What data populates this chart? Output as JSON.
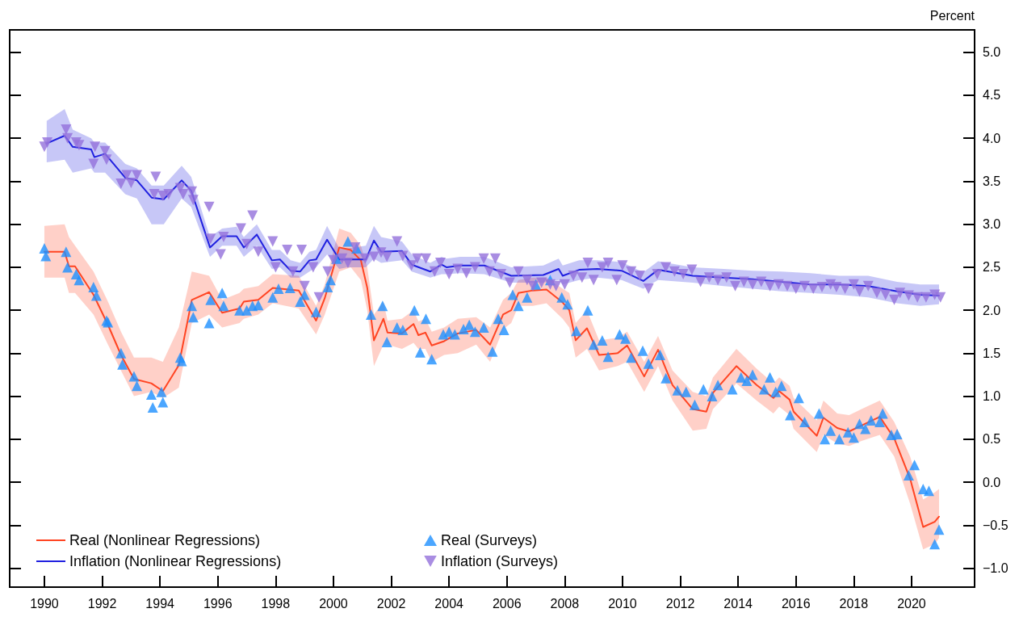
{
  "chart_data": {
    "type": "line",
    "ylabel": "Percent",
    "xlim": [
      1988.8,
      2022.18
    ],
    "xticks": [
      1990,
      1992,
      1994,
      1996,
      1998,
      2000,
      2002,
      2004,
      2006,
      2008,
      2010,
      2012,
      2014,
      2016,
      2018,
      2020
    ],
    "ylim": [
      -1.22,
      5.26
    ],
    "yticks": [
      {
        "value": -1,
        "label": "−1.0"
      },
      {
        "value": -0.5,
        "label": "−0.5"
      },
      {
        "value": 0,
        "label": "0.0"
      },
      {
        "value": 0.5,
        "label": "0.5"
      },
      {
        "value": 1,
        "label": "1.0"
      },
      {
        "value": 1.5,
        "label": "1.5"
      },
      {
        "value": 2,
        "label": "2.0"
      },
      {
        "value": 2.5,
        "label": "2.5"
      },
      {
        "value": 3,
        "label": "3.0"
      },
      {
        "value": 3.5,
        "label": "3.5"
      },
      {
        "value": 4,
        "label": "4.0"
      },
      {
        "value": 4.5,
        "label": "4.5"
      },
      {
        "value": 5,
        "label": "5.0"
      }
    ],
    "grid": false,
    "legend": "bottom left",
    "series": [
      {
        "name": "Real (Nonlinear Regressions)",
        "type": "line",
        "color": "#ff4422",
        "marker": "none",
        "line_style": "solid",
        "x": [
          1990.0,
          1990.7,
          1990.85,
          1991.06,
          1991.7,
          1992.2,
          1992.65,
          1993.1,
          1993.7,
          1994.1,
          1994.65,
          1995.1,
          1995.7,
          1996.15,
          1996.75,
          1996.9,
          1997.4,
          1997.9,
          1998.8,
          1999.4,
          1999.7,
          2000.2,
          2000.6,
          2000.95,
          2001.17,
          2001.4,
          2001.73,
          2001.87,
          2002.37,
          2002.77,
          2002.94,
          2003.18,
          2003.4,
          2003.83,
          2004.3,
          2004.94,
          2005.42,
          2005.87,
          2006.15,
          2006.4,
          2006.9,
          2007.37,
          2007.93,
          2008.16,
          2008.38,
          2008.77,
          2009.19,
          2009.83,
          2010.16,
          2010.75,
          2011.23,
          2011.73,
          2012.43,
          2012.9,
          2013.13,
          2013.94,
          2014.64,
          2015.22,
          2015.42,
          2015.78,
          2015.92,
          2016.72,
          2016.95,
          2017.43,
          2017.84,
          2018.27,
          2018.9,
          2019.4,
          2019.95,
          2020.4,
          2020.8,
          2020.95
        ],
        "values": [
          2.68,
          2.68,
          2.51,
          2.51,
          2.18,
          1.83,
          1.48,
          1.2,
          1.15,
          1.06,
          1.36,
          2.12,
          2.21,
          1.97,
          2.02,
          2.1,
          2.12,
          2.26,
          2.23,
          1.88,
          2.14,
          2.73,
          2.7,
          2.58,
          2.26,
          1.65,
          1.9,
          1.74,
          1.73,
          1.84,
          1.71,
          1.74,
          1.59,
          1.64,
          1.73,
          1.77,
          1.6,
          1.95,
          2.0,
          2.2,
          2.23,
          2.24,
          2.09,
          2.0,
          1.65,
          1.79,
          1.48,
          1.5,
          1.59,
          1.23,
          1.54,
          1.13,
          0.85,
          0.82,
          1.04,
          1.35,
          1.13,
          0.98,
          1.06,
          0.96,
          0.82,
          0.54,
          0.75,
          0.63,
          0.59,
          0.66,
          0.76,
          0.51,
          0.04,
          -0.52,
          -0.46,
          -0.4
        ],
        "lower": [
          2.38,
          2.38,
          2.2,
          2.2,
          1.95,
          1.6,
          1.3,
          1.0,
          1.05,
          0.98,
          1.1,
          1.85,
          1.95,
          1.8,
          1.85,
          1.9,
          1.95,
          2.08,
          2.02,
          1.72,
          1.95,
          2.45,
          2.5,
          2.35,
          2.0,
          1.35,
          1.6,
          1.6,
          1.55,
          1.62,
          1.55,
          1.55,
          1.4,
          1.48,
          1.5,
          1.6,
          1.4,
          1.78,
          1.85,
          2.05,
          2.05,
          2.08,
          1.9,
          1.8,
          1.45,
          1.55,
          1.3,
          1.35,
          1.4,
          1.05,
          1.35,
          0.95,
          0.6,
          0.62,
          0.85,
          1.15,
          0.95,
          0.8,
          0.88,
          0.78,
          0.62,
          0.35,
          0.55,
          0.45,
          0.42,
          0.48,
          0.55,
          0.3,
          -0.25,
          -0.78,
          -0.72,
          -0.65
        ],
        "upper": [
          2.98,
          3.0,
          2.85,
          2.75,
          2.45,
          2.1,
          1.75,
          1.45,
          1.45,
          1.4,
          1.8,
          2.45,
          2.4,
          2.12,
          2.2,
          2.25,
          2.28,
          2.42,
          2.4,
          2.05,
          2.3,
          2.95,
          2.9,
          2.75,
          2.5,
          1.95,
          2.1,
          1.88,
          1.9,
          2.0,
          1.87,
          1.9,
          1.75,
          1.8,
          1.9,
          1.92,
          1.8,
          2.12,
          2.2,
          2.35,
          2.38,
          2.38,
          2.25,
          2.2,
          1.85,
          2.0,
          1.65,
          1.68,
          1.75,
          1.4,
          1.7,
          1.3,
          1.05,
          1.0,
          1.22,
          1.55,
          1.32,
          1.15,
          1.22,
          1.12,
          0.98,
          0.72,
          0.95,
          0.8,
          0.78,
          0.85,
          0.95,
          0.7,
          0.3,
          -0.2,
          -0.12,
          -0.08
        ]
      },
      {
        "name": "Inflation (Nonlinear Regressions)",
        "type": "line",
        "color": "#2020e0",
        "marker": "none",
        "line_style": "solid",
        "x": [
          1990.08,
          1990.7,
          1990.98,
          1991.62,
          1991.73,
          1992.1,
          1992.8,
          1993.2,
          1993.71,
          1994.13,
          1994.75,
          1995.08,
          1995.73,
          1996.15,
          1996.65,
          1996.9,
          1997.35,
          1997.87,
          1998.15,
          1998.52,
          1998.85,
          1999.17,
          1999.4,
          1999.78,
          2000.2,
          2000.48,
          2001.12,
          2001.4,
          2001.65,
          2002.37,
          2002.71,
          2003.35,
          2003.74,
          2003.91,
          2004.39,
          2005.22,
          2006.15,
          2007.26,
          2007.79,
          2007.93,
          2008.5,
          2009.13,
          2009.97,
          2010.72,
          2011.23,
          2012.43,
          2013.5,
          2014.5,
          2015.5,
          2016.5,
          2017.5,
          2018.5,
          2019.5,
          2020.3,
          2020.95
        ],
        "values": [
          3.94,
          4.03,
          3.9,
          3.87,
          3.78,
          3.82,
          3.54,
          3.51,
          3.31,
          3.29,
          3.51,
          3.39,
          2.73,
          2.86,
          2.86,
          2.73,
          2.88,
          2.58,
          2.59,
          2.46,
          2.45,
          2.58,
          2.59,
          2.82,
          2.59,
          2.59,
          2.59,
          2.81,
          2.68,
          2.69,
          2.53,
          2.45,
          2.53,
          2.5,
          2.52,
          2.52,
          2.4,
          2.41,
          2.48,
          2.4,
          2.47,
          2.48,
          2.46,
          2.34,
          2.47,
          2.4,
          2.38,
          2.36,
          2.33,
          2.3,
          2.3,
          2.28,
          2.22,
          2.18,
          2.17
        ],
        "lower": [
          3.72,
          3.75,
          3.6,
          3.65,
          3.6,
          3.6,
          3.35,
          3.3,
          3.0,
          3.0,
          3.3,
          3.2,
          2.62,
          2.75,
          2.75,
          2.62,
          2.75,
          2.48,
          2.5,
          2.38,
          2.38,
          2.45,
          2.5,
          2.65,
          2.48,
          2.5,
          2.5,
          2.6,
          2.55,
          2.58,
          2.45,
          2.38,
          2.42,
          2.42,
          2.43,
          2.42,
          2.32,
          2.32,
          2.35,
          2.3,
          2.35,
          2.38,
          2.35,
          2.25,
          2.35,
          2.32,
          2.28,
          2.25,
          2.22,
          2.2,
          2.18,
          2.15,
          2.08,
          2.05,
          2.07
        ],
        "upper": [
          4.2,
          4.34,
          4.1,
          4.0,
          3.95,
          3.95,
          3.7,
          3.65,
          3.45,
          3.45,
          3.68,
          3.55,
          2.85,
          2.95,
          2.97,
          2.85,
          3.0,
          2.7,
          2.7,
          2.58,
          2.55,
          2.68,
          2.7,
          2.98,
          2.72,
          2.72,
          2.75,
          2.98,
          2.85,
          2.8,
          2.65,
          2.55,
          2.62,
          2.6,
          2.62,
          2.62,
          2.5,
          2.52,
          2.6,
          2.52,
          2.58,
          2.58,
          2.56,
          2.44,
          2.57,
          2.5,
          2.48,
          2.46,
          2.45,
          2.43,
          2.4,
          2.4,
          2.33,
          2.3,
          2.3
        ]
      },
      {
        "name": "Real (Surveys)",
        "type": "scatter",
        "color": "#1e90ff",
        "marker": "triangle",
        "x": [
          1990.0,
          1990.05,
          1990.75,
          1990.8,
          1991.1,
          1991.2,
          1991.7,
          1991.8,
          1992.15,
          1992.2,
          1992.65,
          1992.7,
          1993.1,
          1993.2,
          1993.7,
          1993.75,
          1994.05,
          1994.1,
          1994.7,
          1994.75,
          1995.1,
          1995.15,
          1995.7,
          1995.75,
          1996.15,
          1996.2,
          1996.75,
          1997.0,
          1997.2,
          1997.4,
          1997.9,
          1998.1,
          1998.5,
          1998.85,
          1999.0,
          1999.4,
          1999.8,
          1999.9,
          2000.1,
          2000.5,
          2000.8,
          2001.3,
          2001.7,
          2001.85,
          2002.2,
          2002.4,
          2002.8,
          2003.0,
          2003.2,
          2003.4,
          2003.8,
          2004.0,
          2004.2,
          2004.5,
          2004.7,
          2004.9,
          2005.2,
          2005.5,
          2005.7,
          2005.9,
          2006.2,
          2006.4,
          2006.7,
          2007.0,
          2007.5,
          2007.9,
          2008.1,
          2008.4,
          2008.8,
          2009.0,
          2009.3,
          2009.5,
          2009.9,
          2010.1,
          2010.3,
          2010.7,
          2010.9,
          2011.3,
          2011.5,
          2011.9,
          2012.2,
          2012.5,
          2012.8,
          2013.1,
          2013.3,
          2013.8,
          2014.1,
          2014.3,
          2014.5,
          2014.9,
          2015.1,
          2015.3,
          2015.5,
          2015.8,
          2016.1,
          2016.3,
          2016.8,
          2017.0,
          2017.2,
          2017.5,
          2017.8,
          2018.0,
          2018.2,
          2018.4,
          2018.6,
          2018.9,
          2019.0,
          2019.3,
          2019.5,
          2019.9,
          2020.1,
          2020.4,
          2020.6,
          2020.8,
          2020.95
        ],
        "values": [
          2.72,
          2.63,
          2.68,
          2.5,
          2.42,
          2.35,
          2.27,
          2.17,
          1.88,
          1.86,
          1.5,
          1.37,
          1.23,
          1.12,
          1.02,
          0.87,
          1.05,
          0.93,
          1.45,
          1.41,
          2.05,
          1.92,
          1.85,
          2.12,
          2.2,
          2.05,
          2.0,
          2.0,
          2.05,
          2.06,
          2.15,
          2.25,
          2.26,
          2.1,
          2.18,
          1.98,
          2.27,
          2.35,
          2.6,
          2.8,
          2.72,
          1.95,
          2.05,
          1.63,
          1.8,
          1.77,
          2.0,
          1.51,
          1.9,
          1.43,
          1.72,
          1.75,
          1.72,
          1.78,
          1.83,
          1.75,
          1.8,
          1.52,
          1.9,
          1.77,
          2.18,
          2.05,
          2.15,
          2.3,
          2.35,
          2.15,
          2.07,
          1.76,
          2.0,
          1.6,
          1.65,
          1.46,
          1.72,
          1.67,
          1.45,
          1.53,
          1.38,
          1.48,
          1.21,
          1.07,
          1.05,
          0.9,
          1.08,
          1.0,
          1.13,
          1.08,
          1.22,
          1.18,
          1.25,
          1.08,
          1.22,
          1.05,
          1.12,
          0.78,
          0.98,
          0.7,
          0.8,
          0.5,
          0.6,
          0.5,
          0.58,
          0.52,
          0.68,
          0.62,
          0.72,
          0.7,
          0.8,
          0.55,
          0.56,
          0.08,
          0.2,
          -0.08,
          -0.1,
          -0.72,
          -0.55
        ]
      },
      {
        "name": "Inflation (Surveys)",
        "type": "scatter",
        "color": "#9370db",
        "marker": "triangle-down",
        "x": [
          1990.0,
          1990.1,
          1990.75,
          1990.8,
          1991.1,
          1991.2,
          1991.7,
          1991.75,
          1992.1,
          1992.15,
          1992.65,
          1992.85,
          1993.0,
          1993.2,
          1993.8,
          1993.85,
          1994.1,
          1994.3,
          1994.7,
          1994.8,
          1995.1,
          1995.15,
          1995.7,
          1995.75,
          1996.1,
          1996.2,
          1996.8,
          1997.0,
          1997.2,
          1997.4,
          1997.9,
          1998.0,
          1998.4,
          1998.6,
          1998.9,
          1999.0,
          1999.3,
          1999.5,
          1999.8,
          2000.0,
          2000.3,
          2000.5,
          2000.75,
          2001.1,
          2001.4,
          2001.65,
          2001.85,
          2002.2,
          2002.4,
          2002.7,
          2002.9,
          2003.2,
          2003.5,
          2003.7,
          2004.0,
          2004.3,
          2004.6,
          2004.9,
          2005.2,
          2005.4,
          2005.6,
          2005.8,
          2006.1,
          2006.4,
          2006.7,
          2006.9,
          2007.2,
          2007.5,
          2007.7,
          2008.0,
          2008.3,
          2008.6,
          2008.8,
          2009.0,
          2009.3,
          2009.5,
          2009.8,
          2010.0,
          2010.3,
          2010.6,
          2010.9,
          2011.2,
          2011.5,
          2011.8,
          2012.1,
          2012.4,
          2012.7,
          2013.0,
          2013.3,
          2013.6,
          2013.9,
          2014.2,
          2014.5,
          2014.8,
          2015.1,
          2015.4,
          2015.7,
          2016.0,
          2016.3,
          2016.6,
          2016.9,
          2017.2,
          2017.4,
          2017.7,
          2018.0,
          2018.2,
          2018.5,
          2018.8,
          2019.1,
          2019.4,
          2019.6,
          2019.9,
          2020.2,
          2020.5,
          2020.8,
          2021.0
        ],
        "values": [
          3.9,
          3.95,
          4.1,
          4.0,
          3.95,
          3.92,
          3.7,
          3.9,
          3.85,
          3.75,
          3.47,
          3.57,
          3.48,
          3.57,
          3.35,
          3.55,
          3.33,
          3.35,
          3.42,
          3.35,
          3.38,
          3.28,
          3.2,
          2.83,
          2.65,
          2.85,
          2.95,
          2.77,
          3.1,
          2.68,
          2.8,
          2.5,
          2.7,
          2.45,
          2.7,
          2.28,
          2.5,
          2.15,
          2.45,
          2.58,
          2.6,
          2.55,
          2.73,
          2.6,
          2.62,
          2.67,
          2.62,
          2.8,
          2.63,
          2.52,
          2.6,
          2.6,
          2.45,
          2.55,
          2.42,
          2.48,
          2.43,
          2.5,
          2.6,
          2.45,
          2.6,
          2.42,
          2.32,
          2.45,
          2.35,
          2.28,
          2.32,
          2.3,
          2.28,
          2.3,
          2.4,
          2.38,
          2.55,
          2.35,
          2.5,
          2.55,
          2.35,
          2.52,
          2.45,
          2.4,
          2.25,
          2.42,
          2.5,
          2.45,
          2.42,
          2.47,
          2.33,
          2.38,
          2.35,
          2.38,
          2.28,
          2.33,
          2.3,
          2.33,
          2.28,
          2.3,
          2.28,
          2.25,
          2.28,
          2.25,
          2.27,
          2.3,
          2.27,
          2.25,
          2.3,
          2.22,
          2.28,
          2.2,
          2.18,
          2.12,
          2.2,
          2.17,
          2.15,
          2.15,
          2.18,
          2.15
        ]
      }
    ]
  }
}
